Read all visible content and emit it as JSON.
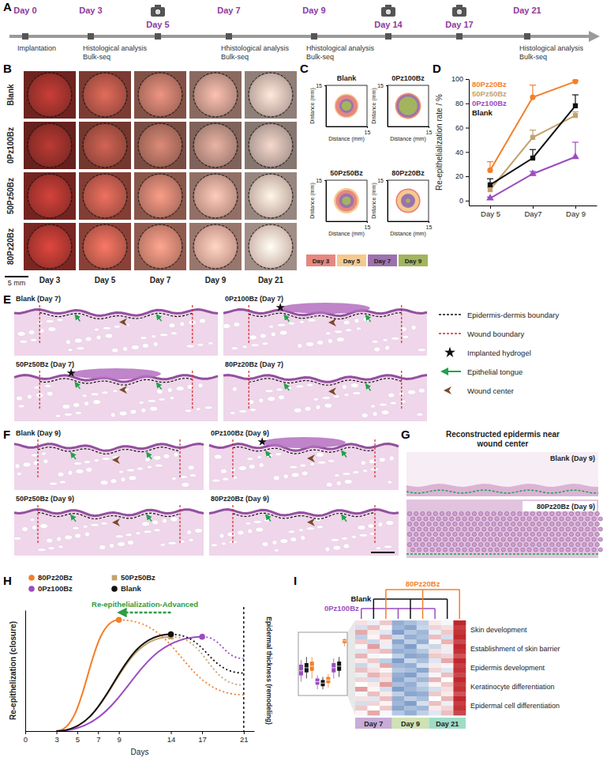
{
  "panel_labels": [
    "A",
    "B",
    "C",
    "D",
    "E",
    "F",
    "G",
    "H",
    "I"
  ],
  "timeline": {
    "events": [
      {
        "day": "Day 0",
        "photo": false,
        "notes": [
          "Implantation"
        ]
      },
      {
        "day": "Day 3",
        "photo": false,
        "notes": [
          "Histological analysis",
          "Bulk-seq"
        ]
      },
      {
        "day": "Day 5",
        "photo": true,
        "notes": []
      },
      {
        "day": "Day 7",
        "photo": false,
        "notes": [
          "Hhistological analysis",
          "Bulk-seq"
        ]
      },
      {
        "day": "Day 9",
        "photo": false,
        "notes": [
          "Hhistological analysis",
          "Bulk-seq"
        ]
      },
      {
        "day": "Day 14",
        "photo": true,
        "notes": []
      },
      {
        "day": "Day 17",
        "photo": true,
        "notes": []
      },
      {
        "day": "Day 21",
        "photo": false,
        "notes": [
          "Histological analysis",
          "Bulk-seq"
        ]
      }
    ]
  },
  "photos": {
    "rows": [
      "Blank",
      "0Pz100Bz",
      "50Pz50Bz",
      "80Pz20Bz"
    ],
    "columns": [
      "Day 3",
      "Day 5",
      "Day 7",
      "Day 9",
      "Day 21"
    ],
    "scale_bar": "5 mm"
  },
  "chart_data": [
    {
      "type": "wound_trace",
      "title": "Blank",
      "x_label": "Distance (mm)",
      "y_label": "Distance (mm)",
      "xlim": [
        0,
        15
      ],
      "ylim": [
        0,
        15
      ],
      "xticks": [
        15
      ],
      "yticks": [
        15
      ],
      "series": [
        {
          "name": "Day 3",
          "color": "#e5877f",
          "radius": 4.0
        },
        {
          "name": "Day 5",
          "color": "#f5c98e",
          "radius": 4.4
        },
        {
          "name": "Day 7",
          "color": "#9c72ae",
          "radius": 2.6
        },
        {
          "name": "Day 9",
          "color": "#a3b45e",
          "radius": 1.8
        }
      ]
    },
    {
      "type": "wound_trace",
      "title": "0Pz100Bz",
      "x_label": "Distance (mm)",
      "y_label": "Distance (mm)",
      "xlim": [
        0,
        15
      ],
      "ylim": [
        0,
        15
      ],
      "xticks": [
        15
      ],
      "yticks": [
        15
      ],
      "series": [
        {
          "name": "Day 3",
          "color": "#e5877f",
          "radius": 4.6
        },
        {
          "name": "Day 5",
          "color": "#f5c98e",
          "radius": 4.8
        },
        {
          "name": "Day 7",
          "color": "#9c72ae",
          "radius": 4.2
        },
        {
          "name": "Day 9",
          "color": "#a3b45e",
          "radius": 3.4
        }
      ]
    },
    {
      "type": "wound_trace",
      "title": "50Pz50Bz",
      "x_label": "Distance (mm)",
      "y_label": "Distance (mm)",
      "xlim": [
        0,
        15
      ],
      "ylim": [
        0,
        15
      ],
      "xticks": [
        15
      ],
      "yticks": [
        15
      ],
      "series": [
        {
          "name": "Day 3",
          "color": "#e5877f",
          "radius": 3.9
        },
        {
          "name": "Day 5",
          "color": "#f5c98e",
          "radius": 4.6
        },
        {
          "name": "Day 7",
          "color": "#9c72ae",
          "radius": 2.7
        },
        {
          "name": "Day 9",
          "color": "#a3b45e",
          "radius": 1.6
        }
      ]
    },
    {
      "type": "wound_trace",
      "title": "80Pz20Bz",
      "x_label": "Distance (mm)",
      "y_label": "Distance (mm)",
      "xlim": [
        0,
        15
      ],
      "ylim": [
        0,
        15
      ],
      "xticks": [
        15
      ],
      "yticks": [
        15
      ],
      "series": [
        {
          "name": "Day 3",
          "color": "#e5877f",
          "radius": 4.5
        },
        {
          "name": "Day 5",
          "color": "#f5c98e",
          "radius": 4.0
        },
        {
          "name": "Day 7",
          "color": "#9c72ae",
          "radius": 2.6
        },
        {
          "name": "Day 9",
          "color": "#a3b45e",
          "radius": 0.8
        }
      ]
    },
    {
      "type": "line",
      "y_label": "Re-epithelialization rate / %",
      "categories": [
        "Day 5",
        "Day7",
        "Day 9"
      ],
      "ylim": [
        -4,
        100
      ],
      "yticks": [
        0,
        20,
        40,
        60,
        80,
        100
      ],
      "legend": "upper left",
      "series": [
        {
          "name": "80Pz20Bz",
          "color": "#f47f2a",
          "marker": "circle",
          "values": [
            25,
            85,
            98
          ],
          "errors": [
            7,
            10,
            1
          ]
        },
        {
          "name": "50Pz50Bz",
          "color": "#c4a26e",
          "marker": "square",
          "values": [
            9,
            52,
            70
          ],
          "errors": [
            2,
            6,
            3
          ]
        },
        {
          "name": "0Pz100Bz",
          "color": "#9b4dbf",
          "marker": "triangle",
          "values": [
            2,
            22,
            36
          ],
          "errors": [
            1,
            2,
            12
          ]
        },
        {
          "name": "Blank",
          "color": "#111111",
          "marker": "square",
          "values": [
            13,
            35,
            78
          ],
          "errors": [
            5,
            7,
            9
          ]
        }
      ]
    },
    {
      "type": "line",
      "x_label": "Days",
      "y_label": "Re-epithelization (closure)",
      "y2_label": "Epidermal thickness (remodeling)",
      "xlim": [
        0,
        22
      ],
      "xticks": [
        0,
        3,
        5,
        7,
        9,
        14,
        17,
        21
      ],
      "ylim": [
        0,
        1
      ],
      "tick_labels": "x",
      "legend": "top",
      "annotations": [
        {
          "text": "Re-epithelialization-Advanced",
          "x": [
            14,
            9
          ],
          "color": "#2e9e44"
        }
      ],
      "series": [
        {
          "name": "80Pz20Bz",
          "color": "#f47f2a",
          "marker": "circle",
          "x": [
            3,
            9,
            21
          ],
          "values": [
            0,
            0.92,
            0.3
          ]
        },
        {
          "name": "50Pz50Bz",
          "color": "#c4a26e",
          "marker": "square",
          "x": [
            3,
            14,
            21
          ],
          "values": [
            0,
            0.78,
            0.38
          ]
        },
        {
          "name": "0Pz100Bz",
          "color": "#9b4dbf",
          "marker": "circle",
          "x": [
            3,
            17,
            21
          ],
          "values": [
            0,
            0.78,
            0.6
          ]
        },
        {
          "name": "Blank",
          "color": "#111111",
          "marker": "circle",
          "x": [
            3,
            14,
            21
          ],
          "values": [
            0,
            0.8,
            0.48
          ]
        }
      ]
    },
    {
      "type": "heatmap",
      "groups": [
        "0Pz100Bz",
        "Blank",
        "80Pz20Bz"
      ],
      "group_colors": [
        "#9b4dbf",
        "#111111",
        "#f47f2a"
      ],
      "days": [
        "Day 7",
        "Day 9",
        "Day 21"
      ],
      "day_colors": [
        "#c7acd8",
        "#cfe2b4",
        "#9fdcc8"
      ],
      "row_labels": [
        "Skin development",
        "Establishment of skin barrier",
        "Epidermis development",
        "Keratinocyte differentiation",
        "Epidermal cell differentiation"
      ],
      "color_range": [
        -2,
        2
      ],
      "colors": [
        "#2b5fa8",
        "#ffffff",
        "#c0282d"
      ],
      "cells": [
        [
          0.3,
          -0.2,
          0.5,
          -1.0,
          -0.8,
          -0.6,
          0.2,
          -0.1,
          2.0
        ],
        [
          -0.4,
          0.6,
          0.1,
          -0.9,
          -1.1,
          -0.5,
          0.4,
          0.3,
          1.8
        ],
        [
          0.8,
          0.2,
          -0.3,
          -1.2,
          -0.7,
          -0.9,
          -0.2,
          0.5,
          1.9
        ],
        [
          -0.6,
          0.1,
          0.7,
          -0.5,
          -1.0,
          -0.8,
          0.6,
          -0.4,
          2.0
        ],
        [
          0.5,
          -0.5,
          0.2,
          -1.1,
          -0.6,
          -1.0,
          0.1,
          0.7,
          1.7
        ],
        [
          0.1,
          0.9,
          -0.2,
          -0.8,
          -1.2,
          -0.4,
          -0.5,
          0.2,
          2.0
        ],
        [
          -0.3,
          0.4,
          0.6,
          -1.0,
          -0.9,
          -0.7,
          0.3,
          -0.2,
          1.9
        ],
        [
          0.7,
          -0.1,
          0.0,
          -0.6,
          -1.1,
          -1.0,
          0.5,
          0.4,
          1.6
        ],
        [
          0.2,
          0.5,
          -0.6,
          -1.2,
          -0.5,
          -0.8,
          -0.3,
          0.8,
          2.0
        ],
        [
          -0.5,
          -0.2,
          0.8,
          -0.9,
          -1.0,
          -0.4,
          0.2,
          0.1,
          1.8
        ],
        [
          0.6,
          0.3,
          0.1,
          -0.7,
          -0.8,
          -1.1,
          0.4,
          -0.3,
          1.9
        ],
        [
          -0.2,
          0.7,
          0.4,
          -1.0,
          -1.2,
          -0.6,
          -0.1,
          0.6,
          1.7
        ],
        [
          0.4,
          -0.4,
          0.3,
          -1.1,
          -0.7,
          -0.9,
          0.7,
          0.0,
          2.0
        ],
        [
          0.0,
          0.2,
          0.9,
          -0.8,
          -1.0,
          -0.5,
          0.1,
          0.5,
          1.8
        ],
        [
          0.9,
          0.1,
          -0.4,
          -1.2,
          -0.9,
          -0.7,
          -0.4,
          0.3,
          1.9
        ],
        [
          -0.1,
          0.6,
          0.2,
          -0.6,
          -1.1,
          -1.0,
          0.5,
          0.2,
          1.6
        ],
        [
          0.3,
          -0.3,
          0.6,
          -1.0,
          -0.6,
          -0.8,
          0.0,
          0.7,
          2.0
        ],
        [
          -0.4,
          0.4,
          0.1,
          -0.9,
          -1.2,
          -0.4,
          0.6,
          -0.2,
          1.8
        ],
        [
          0.5,
          0.0,
          0.5,
          -1.1,
          -0.8,
          -0.9,
          0.2,
          0.4,
          1.9
        ],
        [
          0.1,
          0.8,
          -0.1,
          -0.7,
          -1.0,
          -0.6,
          -0.3,
          0.6,
          1.7
        ]
      ],
      "box_ylim": [
        -1.5,
        2.2
      ],
      "boxes": [
        [
          -0.8,
          -0.4,
          -0.1,
          0.3,
          0.6
        ],
        [
          -0.6,
          -0.2,
          0.1,
          0.4,
          0.8
        ],
        [
          -0.6,
          -0.1,
          0.2,
          0.5,
          0.8
        ],
        [
          -1.3,
          -1.0,
          -0.8,
          -0.6,
          -0.4
        ],
        [
          -1.3,
          -1.1,
          -0.9,
          -0.7,
          -0.5
        ],
        [
          -1.2,
          -0.9,
          -0.7,
          -0.5,
          -0.3
        ],
        [
          -0.6,
          -0.2,
          0.1,
          0.4,
          0.7
        ],
        [
          -0.5,
          -0.1,
          0.2,
          0.5,
          0.8
        ],
        [
          1.5,
          1.7,
          1.85,
          1.95,
          2.0
        ]
      ]
    }
  ],
  "histology_legend": [
    "Epidermis-dermis boundary",
    "Wound boundary",
    "Implanted hydrogel",
    "Epithelial tongue",
    "Wound center"
  ],
  "day7_images": [
    {
      "title": "Blank (Day 7)",
      "hydrogel": false
    },
    {
      "title": "0Pz100Bz (Day 7)",
      "hydrogel": true
    },
    {
      "title": "50Pz50Bz (Day 7)",
      "hydrogel": true
    },
    {
      "title": "80Pz20Bz (Day 7)",
      "hydrogel": false
    }
  ],
  "day9_images": [
    {
      "title": "Blank (Day 9)",
      "hydrogel": false
    },
    {
      "title": "0Pz100Bz (Day 9)",
      "hydrogel": true
    },
    {
      "title": "50Pz50Bz (Day 9)",
      "hydrogel": false
    },
    {
      "title": "80Pz20Bz (Day 9)",
      "hydrogel": false
    }
  ],
  "epidermis_zoom": {
    "title": "Reconstructed epidermis near wound center",
    "images": [
      "Blank (Day 9)",
      "80Pz20Bz (Day 9)"
    ]
  }
}
